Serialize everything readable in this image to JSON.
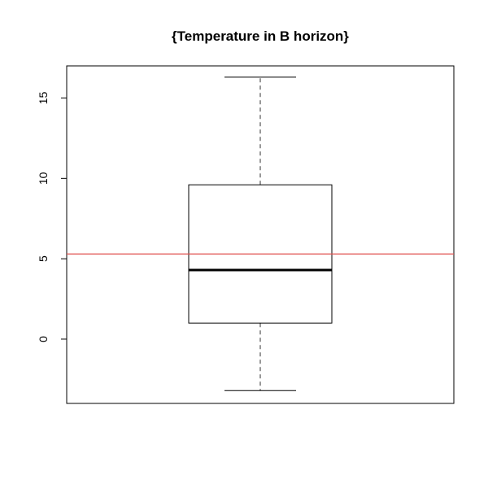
{
  "chart_data": {
    "type": "boxplot",
    "title": "{Temperature in B horizon}",
    "xlabel": "",
    "ylabel": "",
    "ylim": [
      -4,
      17
    ],
    "yticks": [
      0,
      5,
      10,
      15
    ],
    "ytick_labels": [
      "0",
      "5",
      "10",
      "15"
    ],
    "grid": false,
    "box": {
      "whisker_low": -3.2,
      "q1": 1.0,
      "median": 4.3,
      "q3": 9.6,
      "whisker_high": 16.3
    },
    "reference_line": {
      "value": 5.3,
      "color": "#e0504f"
    },
    "colors": {
      "frame": "#000000",
      "box": "#000000",
      "whisker": "#555555"
    }
  }
}
